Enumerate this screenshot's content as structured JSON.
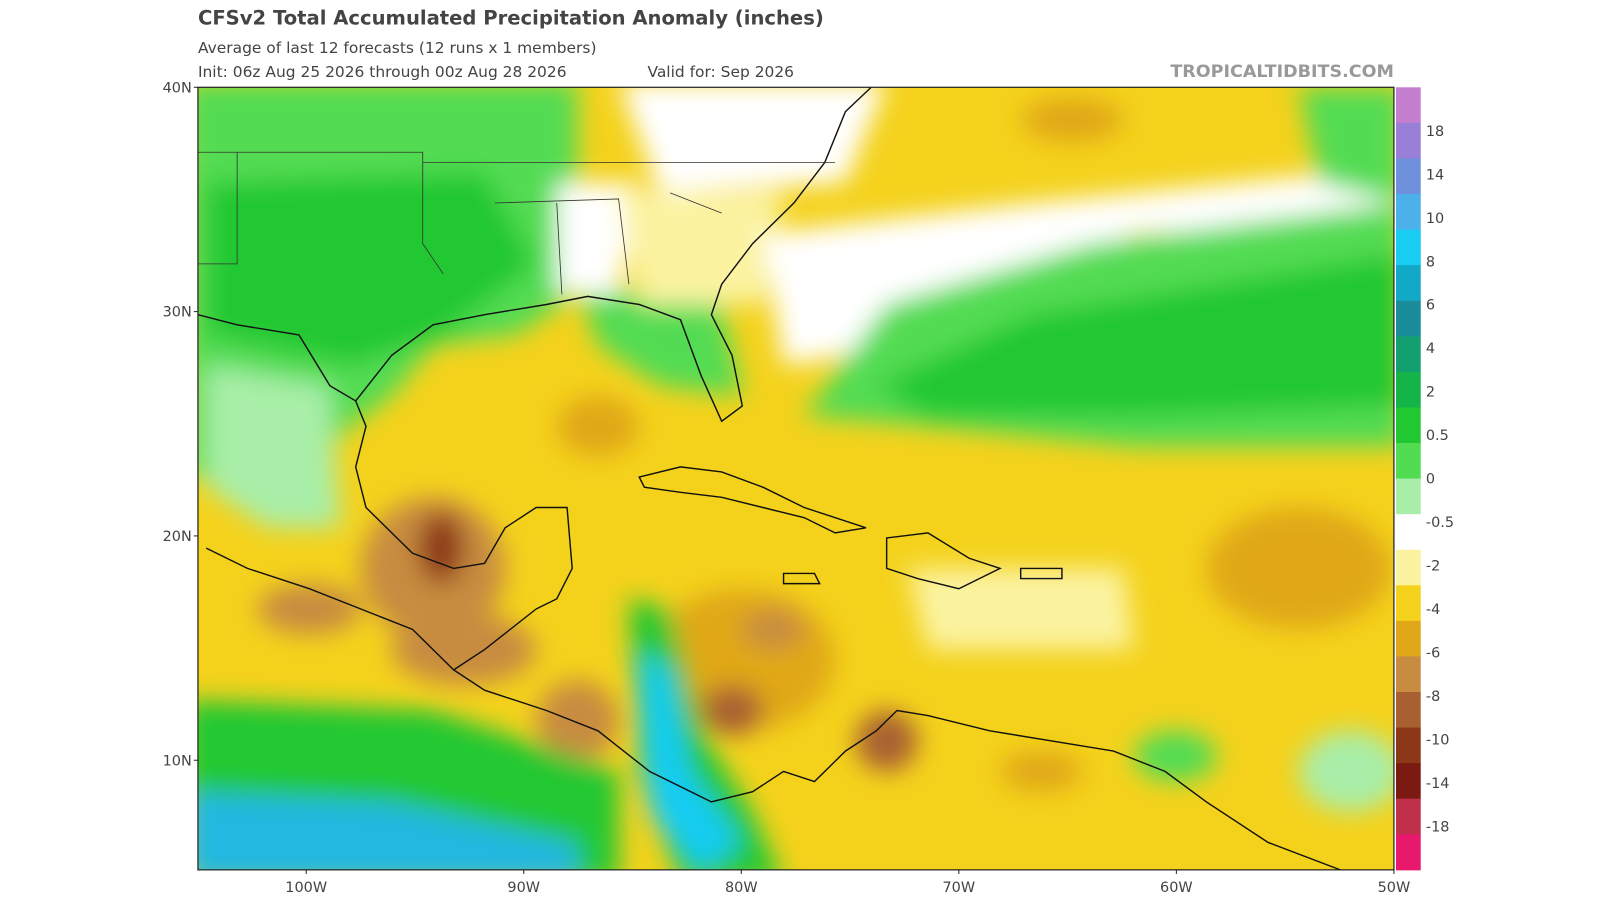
{
  "header": {
    "title": "CFSv2 Total Accumulated Precipitation Anomaly (inches)",
    "subtitle": "Average of last 12 forecasts (12 runs x 1 members)",
    "init": "Init: 06z Aug 25 2026 through 00z Aug 28 2026",
    "valid": "Valid for: Sep 2026",
    "source": "TROPICALTIDBITS.COM"
  },
  "map": {
    "lat_labels": [
      "40N",
      "30N",
      "20N",
      "10N"
    ],
    "lon_labels": [
      "100W",
      "90W",
      "80W",
      "70W",
      "60W",
      "50W"
    ]
  },
  "colorbar": {
    "colors": [
      "#c47ed0",
      "#9a7fd8",
      "#6f90dc",
      "#4cb0ea",
      "#18ccf2",
      "#12a8c8",
      "#1a8c9a",
      "#12a070",
      "#14b448",
      "#22c832",
      "#52dc52",
      "#a8eea8",
      "#ffffff",
      "#fbf3a0",
      "#f4d21c",
      "#e0a818",
      "#c88c40",
      "#a86030",
      "#8c3818",
      "#7a1a10",
      "#c0304a",
      "#e8186c"
    ],
    "labels": [
      "18",
      "14",
      "10",
      "8",
      "6",
      "4",
      "2",
      "0.5",
      "0",
      "-0.5",
      "-2",
      "-4",
      "-6",
      "-8",
      "-10",
      "-14",
      "-18"
    ]
  }
}
